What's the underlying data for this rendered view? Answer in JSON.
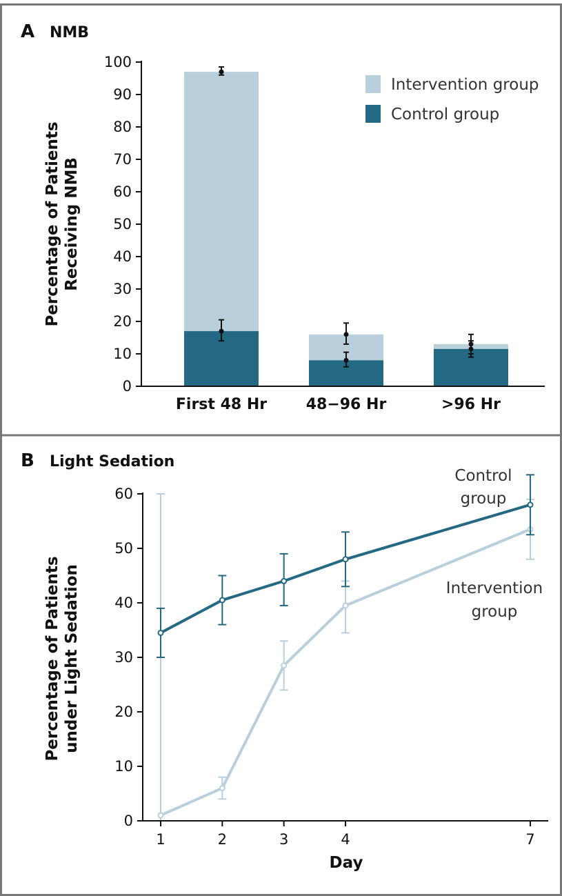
{
  "colors": {
    "intervention": "#b9cfdb",
    "control": "#246983",
    "control_line": "#246983",
    "intervention_line": "#b9cfdb",
    "frame": "#777777",
    "error_bar": "#111111"
  },
  "chart_data": [
    {
      "type": "bar",
      "panel_letter": "A",
      "title": "NMB",
      "xlabel": "",
      "ylabel_lines": [
        "Percentage of Patients",
        "Receiving NMB"
      ],
      "ylim": [
        0,
        100
      ],
      "yticks": [
        0,
        10,
        20,
        30,
        40,
        50,
        60,
        70,
        80,
        90,
        100
      ],
      "categories": [
        "First 48 Hr",
        "48−96 Hr",
        ">96 Hr"
      ],
      "legend_position": "top-right",
      "series": [
        {
          "name": "Intervention group",
          "values": [
            97,
            16,
            13
          ],
          "error_low": [
            96,
            13,
            10
          ],
          "error_high": [
            98.5,
            19.5,
            16
          ]
        },
        {
          "name": "Control group",
          "values": [
            17,
            8,
            11.5
          ],
          "error_low": [
            14,
            6,
            9
          ],
          "error_high": [
            20.5,
            10.5,
            14
          ]
        }
      ]
    },
    {
      "type": "line",
      "panel_letter": "B",
      "title": "Light Sedation",
      "xlabel": "Day",
      "ylabel_lines": [
        "Percentage of Patients",
        "under Light Sedation"
      ],
      "ylim": [
        0,
        60
      ],
      "yticks": [
        0,
        10,
        20,
        30,
        40,
        50,
        60
      ],
      "x": [
        1,
        2,
        3,
        4,
        7
      ],
      "xticks": [
        1,
        2,
        3,
        4,
        7
      ],
      "series": [
        {
          "name": "Control group",
          "label_lines": [
            "Control",
            "group"
          ],
          "values": [
            34.5,
            40.5,
            44,
            48,
            58
          ],
          "error_low": [
            30,
            36,
            39.5,
            43,
            52.5
          ],
          "error_high": [
            39,
            45,
            49,
            53,
            63.5
          ]
        },
        {
          "name": "Intervention group",
          "label_lines": [
            "Intervention",
            "group"
          ],
          "values": [
            1,
            6,
            28.5,
            39.5,
            53.5
          ],
          "error_low": [
            0,
            4,
            24,
            34.5,
            48
          ],
          "error_high": [
            60,
            8,
            33,
            44,
            59
          ]
        }
      ]
    }
  ]
}
